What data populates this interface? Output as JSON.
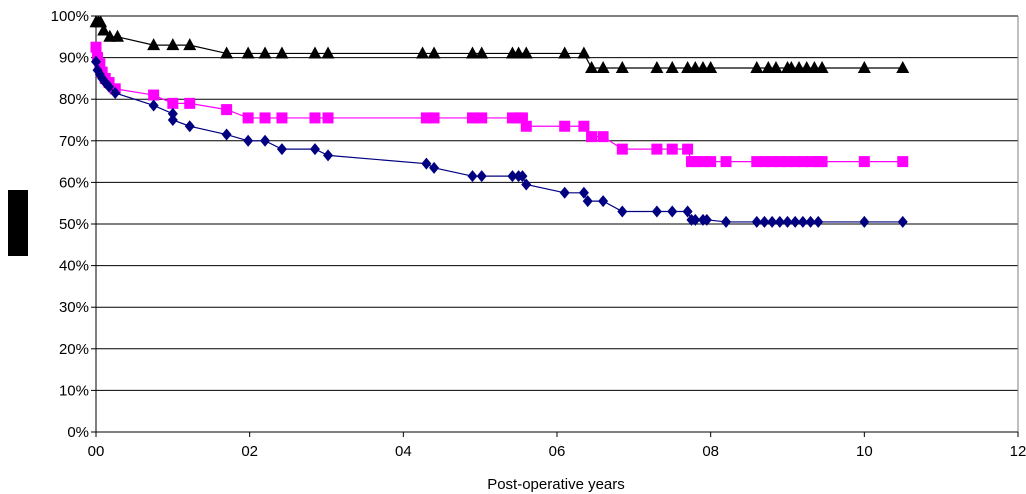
{
  "chart_data": {
    "type": "line",
    "title": "",
    "xlabel": "Post-operative years",
    "ylabel": "",
    "xlim": [
      0,
      12
    ],
    "ylim": [
      0,
      100
    ],
    "x_ticks": [
      0,
      2,
      4,
      6,
      8,
      10,
      12
    ],
    "x_tick_labels": [
      "00",
      "02",
      "04",
      "06",
      "08",
      "10",
      "12"
    ],
    "y_ticks": [
      0,
      10,
      20,
      30,
      40,
      50,
      60,
      70,
      80,
      90,
      100
    ],
    "y_tick_labels": [
      "0%",
      "10%",
      "20%",
      "30%",
      "40%",
      "50%",
      "60%",
      "70%",
      "80%",
      "90%",
      "100%"
    ],
    "grid": "horizontal",
    "legend": "none",
    "series": [
      {
        "marker": "triangle",
        "color": "#000000",
        "x": [
          0,
          0.03,
          0.06,
          0.1,
          0.18,
          0.28,
          0.75,
          1.0,
          1.22,
          1.7,
          1.98,
          2.2,
          2.42,
          2.85,
          3.02,
          4.25,
          4.4,
          4.9,
          5.02,
          5.42,
          5.5,
          5.6,
          6.1,
          6.35,
          6.45,
          6.6,
          6.85,
          7.3,
          7.5,
          7.7,
          7.8,
          7.9,
          8.0,
          8.6,
          8.75,
          8.85,
          9.0,
          9.05,
          9.15,
          9.25,
          9.35,
          9.45,
          10.0,
          10.5
        ],
        "y": [
          98.5,
          98.5,
          98.5,
          96.5,
          95,
          95,
          93,
          93,
          93,
          91,
          91,
          91,
          91,
          91,
          91,
          91,
          91,
          91,
          91,
          91,
          91,
          91,
          91,
          91,
          87.5,
          87.5,
          87.5,
          87.5,
          87.5,
          87.5,
          87.5,
          87.5,
          87.5,
          87.5,
          87.5,
          87.5,
          87.5,
          87.5,
          87.5,
          87.5,
          87.5,
          87.5,
          87.5,
          87.5
        ]
      },
      {
        "marker": "square",
        "color": "#ff00ff",
        "x": [
          0,
          0.02,
          0.05,
          0.08,
          0.12,
          0.17,
          0.25,
          0.75,
          1.0,
          1.22,
          1.7,
          1.98,
          2.2,
          2.42,
          2.85,
          3.02,
          4.3,
          4.4,
          4.9,
          5.02,
          5.42,
          5.5,
          5.55,
          5.6,
          6.1,
          6.35,
          6.45,
          6.6,
          6.85,
          7.3,
          7.5,
          7.7,
          7.75,
          7.8,
          7.9,
          8.0,
          8.2,
          8.6,
          8.7,
          8.8,
          8.9,
          9.0,
          9.1,
          9.2,
          9.3,
          9.4,
          9.45,
          10.0,
          10.5
        ],
        "y": [
          92.5,
          90,
          88.5,
          86.5,
          85,
          84,
          82.5,
          81,
          79,
          79,
          77.5,
          75.5,
          75.5,
          75.5,
          75.5,
          75.5,
          75.5,
          75.5,
          75.5,
          75.5,
          75.5,
          75.5,
          75.5,
          73.5,
          73.5,
          73.5,
          71,
          71,
          68,
          68,
          68,
          68,
          65,
          65,
          65,
          65,
          65,
          65,
          65,
          65,
          65,
          65,
          65,
          65,
          65,
          65,
          65,
          65,
          65
        ]
      },
      {
        "marker": "diamond",
        "color": "#000080",
        "x": [
          0,
          0.02,
          0.05,
          0.08,
          0.12,
          0.17,
          0.25,
          0.75,
          1.0,
          1.0,
          1.22,
          1.7,
          1.98,
          2.2,
          2.42,
          2.85,
          3.02,
          4.3,
          4.4,
          4.9,
          5.02,
          5.42,
          5.5,
          5.55,
          5.6,
          6.1,
          6.35,
          6.4,
          6.6,
          6.85,
          7.3,
          7.5,
          7.7,
          7.75,
          7.8,
          7.9,
          7.95,
          8.2,
          8.6,
          8.7,
          8.8,
          8.9,
          9.0,
          9.1,
          9.2,
          9.3,
          9.4,
          10.0,
          10.5
        ],
        "y": [
          89,
          87,
          86,
          85,
          84,
          83,
          81.5,
          78.5,
          76.5,
          75,
          73.5,
          71.5,
          70,
          70,
          68,
          68,
          66.5,
          64.5,
          63.5,
          61.5,
          61.5,
          61.5,
          61.5,
          61.5,
          59.5,
          57.5,
          57.5,
          55.5,
          55.5,
          53,
          53,
          53,
          53,
          51,
          51,
          51,
          51,
          50.5,
          50.5,
          50.5,
          50.5,
          50.5,
          50.5,
          50.5,
          50.5,
          50.5,
          50.5,
          50.5,
          50.5
        ]
      }
    ]
  }
}
